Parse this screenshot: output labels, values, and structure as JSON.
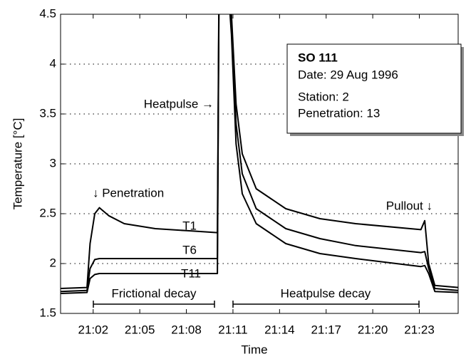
{
  "chart_data": {
    "type": "line",
    "xlabel": "Time",
    "ylabel": "Temperature [°C]",
    "x": [
      59.9,
      61.6,
      61.8,
      62.1,
      62.4,
      63,
      64,
      66,
      68,
      70,
      70.15,
      70.5,
      70.9,
      71.2,
      71.6,
      72.5,
      74.4,
      76.6,
      78.9,
      83.1,
      83.35,
      83.6,
      84,
      85.5
    ],
    "series": [
      {
        "name": "T1",
        "color": "#000000",
        "values": [
          1.75,
          1.76,
          2.2,
          2.5,
          2.56,
          2.48,
          2.4,
          2.35,
          2.33,
          2.31,
          6,
          5.5,
          4.5,
          3.6,
          3.1,
          2.75,
          2.55,
          2.45,
          2.4,
          2.34,
          2.43,
          2.0,
          1.78,
          1.76
        ]
      },
      {
        "name": "T6",
        "color": "#000000",
        "values": [
          1.72,
          1.73,
          1.95,
          2.04,
          2.05,
          2.05,
          2.05,
          2.05,
          2.05,
          2.05,
          6,
          5.3,
          4.4,
          3.4,
          2.9,
          2.55,
          2.35,
          2.25,
          2.18,
          2.11,
          2.12,
          1.95,
          1.75,
          1.73
        ]
      },
      {
        "name": "T11",
        "color": "#000000",
        "values": [
          1.7,
          1.71,
          1.85,
          1.89,
          1.9,
          1.9,
          1.9,
          1.9,
          1.9,
          1.9,
          6,
          5.2,
          4.3,
          3.2,
          2.7,
          2.4,
          2.2,
          2.1,
          2.05,
          1.97,
          1.98,
          1.9,
          1.72,
          1.71
        ]
      }
    ],
    "xlim": [
      59.9,
      85.5
    ],
    "xticks": [
      {
        "value": 62,
        "label": "21:02"
      },
      {
        "value": 65,
        "label": "21:05"
      },
      {
        "value": 68,
        "label": "21:08"
      },
      {
        "value": 71,
        "label": "21:11"
      },
      {
        "value": 74,
        "label": "21:14"
      },
      {
        "value": 77,
        "label": "21:17"
      },
      {
        "value": 80,
        "label": "21:20"
      },
      {
        "value": 83,
        "label": "21:23"
      }
    ],
    "ylim": [
      1.5,
      4.5
    ],
    "yticks": [
      1.5,
      2,
      2.5,
      3,
      3.5,
      4,
      4.5
    ],
    "grid": "y",
    "annotations": [
      "↓ Penetration",
      "Heatpulse →",
      "Pullout ↓",
      "Frictional decay",
      "Heatpulse decay"
    ],
    "info_box": {
      "title": "SO 111",
      "lines": [
        "Date: 29 Aug 1996",
        "Station: 2",
        "Penetration: 13"
      ]
    }
  }
}
